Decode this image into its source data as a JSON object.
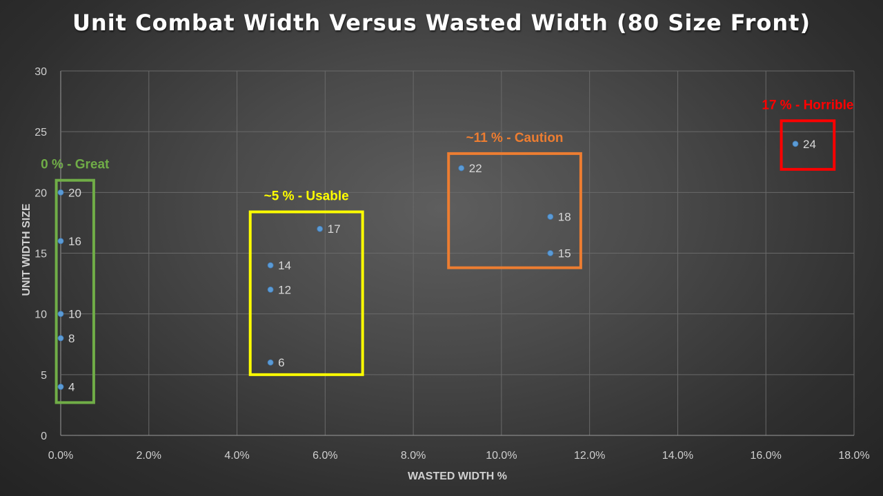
{
  "chart_data": {
    "type": "scatter",
    "title": "Unit Combat Width Versus Wasted Width (80 Size Front)",
    "xlabel": "WASTED WIDTH %",
    "ylabel": "UNIT WIDTH SIZE",
    "xlim": [
      0,
      18
    ],
    "ylim": [
      0,
      30
    ],
    "x_ticks": [
      "0.0%",
      "2.0%",
      "4.0%",
      "6.0%",
      "8.0%",
      "10.0%",
      "12.0%",
      "14.0%",
      "16.0%",
      "18.0%"
    ],
    "y_ticks": [
      "0",
      "5",
      "10",
      "15",
      "20",
      "25",
      "30"
    ],
    "grid": true,
    "point_color": "#5b9bd5",
    "points": [
      {
        "x": 0,
        "y": 20,
        "label": "20"
      },
      {
        "x": 0,
        "y": 16,
        "label": "16"
      },
      {
        "x": 0,
        "y": 10,
        "label": "10"
      },
      {
        "x": 0,
        "y": 8,
        "label": "8"
      },
      {
        "x": 0,
        "y": 4,
        "label": "4"
      },
      {
        "x": 4.76,
        "y": 14,
        "label": "14"
      },
      {
        "x": 4.76,
        "y": 12,
        "label": "12"
      },
      {
        "x": 4.76,
        "y": 6,
        "label": "6"
      },
      {
        "x": 5.88,
        "y": 17,
        "label": "17"
      },
      {
        "x": 9.09,
        "y": 22,
        "label": "22"
      },
      {
        "x": 11.11,
        "y": 18,
        "label": "18"
      },
      {
        "x": 11.11,
        "y": 15,
        "label": "15"
      },
      {
        "x": 16.67,
        "y": 24,
        "label": "24"
      }
    ],
    "annotations": [
      {
        "label": "0 % - Great",
        "color": "#70ad47",
        "x_range": [
          -0.1,
          0.75
        ],
        "y_range": [
          2.7,
          21
        ]
      },
      {
        "label": "~5 % - Usable",
        "color": "#ffff00",
        "x_range": [
          4.3,
          6.85
        ],
        "y_range": [
          5,
          18.4
        ]
      },
      {
        "label": "~11 % - Caution",
        "color": "#ed7d31",
        "x_range": [
          8.8,
          11.8
        ],
        "y_range": [
          13.8,
          23.2
        ]
      },
      {
        "label": "17 % - Horrible",
        "color": "#ff0000",
        "x_range": [
          16.35,
          17.55
        ],
        "y_range": [
          21.9,
          25.9
        ]
      }
    ]
  }
}
